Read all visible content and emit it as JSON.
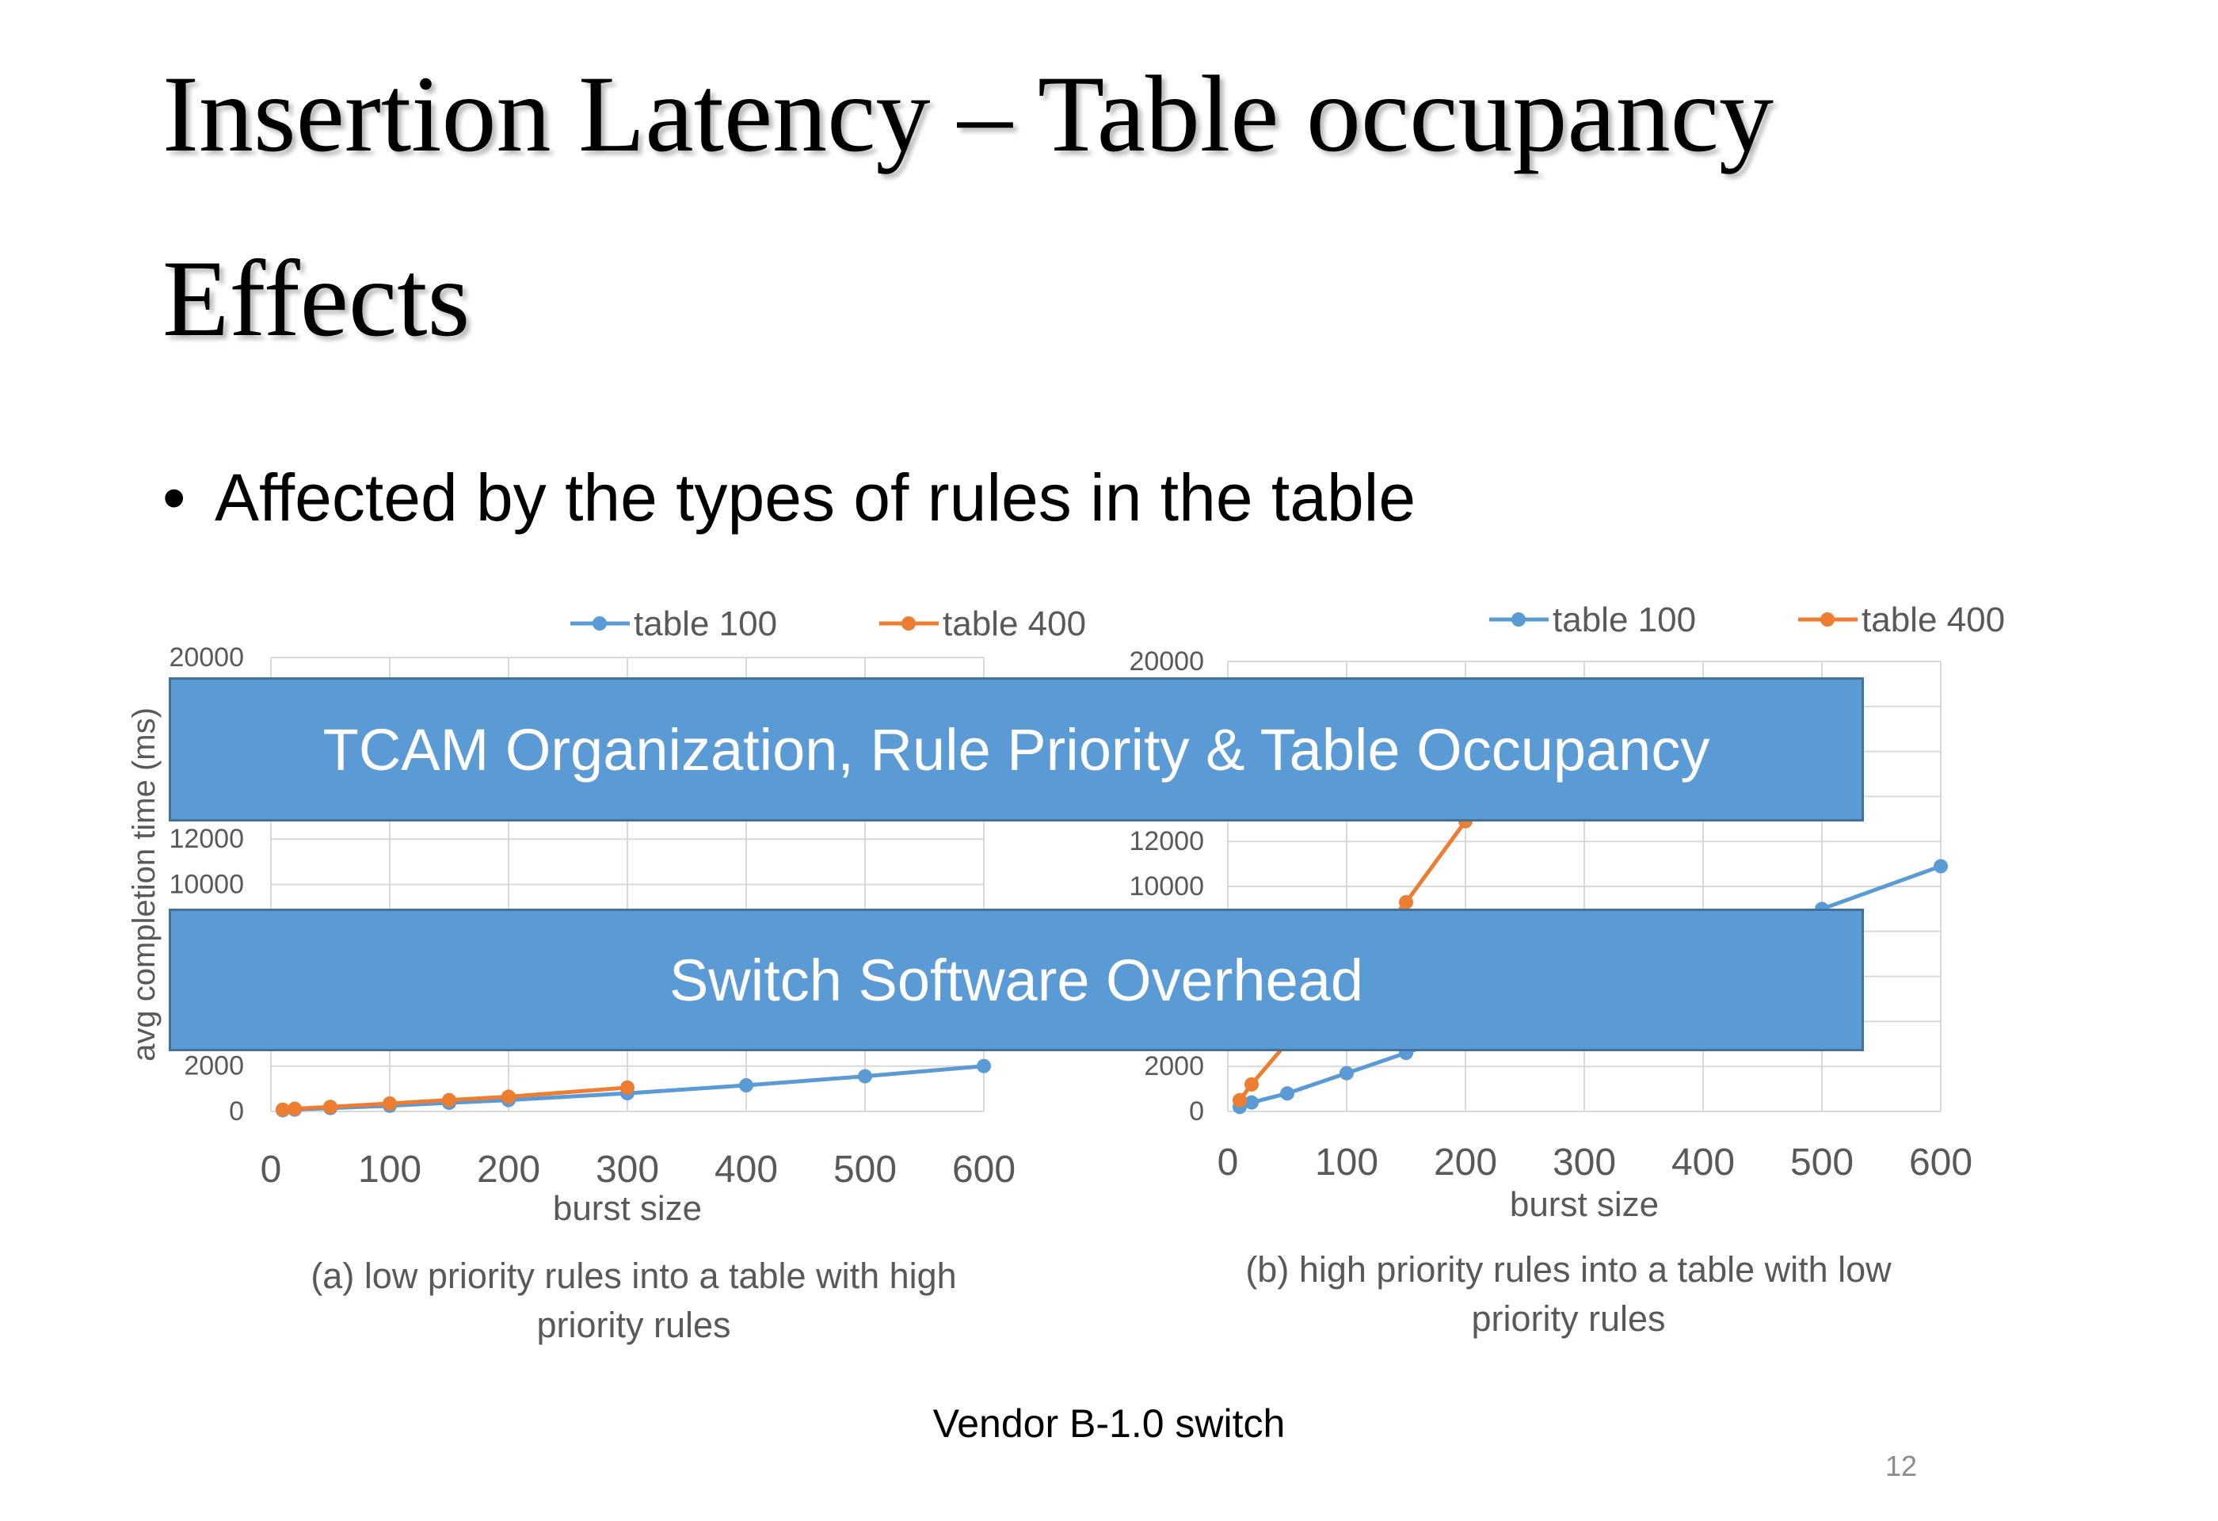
{
  "slide": {
    "title_line1": "Insertion Latency – Table occupancy",
    "title_line2": "Effects",
    "bullet_symbol": "•",
    "bullet": "Affected by the types of rules in the table",
    "banner_top": "TCAM Organization, Rule Priority & Table Occupancy",
    "banner_bottom": "Switch Software Overhead",
    "footer": "Vendor B-1.0 switch",
    "slide_number": "12"
  },
  "colors": {
    "table100": "#5b9bd5",
    "table400": "#ed7d31",
    "banner": "#5b9bd5"
  },
  "chart_data": [
    {
      "type": "line",
      "caption_line1": "(a) low priority rules into a table with high",
      "caption_line2": "priority rules",
      "xlabel": "burst size",
      "ylabel": "avg completion time (ms)",
      "xlim": [
        0,
        600
      ],
      "ylim": [
        0,
        20000
      ],
      "x_ticks": [
        "0",
        "100",
        "200",
        "300",
        "400",
        "500",
        "600"
      ],
      "y_ticks": [
        "0",
        "2000",
        "10000",
        "12000",
        "20000"
      ],
      "grid": true,
      "legend_position": "top",
      "series": [
        {
          "name": "table 100",
          "color": "#5b9bd5",
          "x": [
            10,
            20,
            50,
            100,
            150,
            200,
            300,
            400,
            500,
            600
          ],
          "y": [
            50,
            80,
            150,
            250,
            380,
            500,
            800,
            1150,
            1550,
            2000
          ]
        },
        {
          "name": "table 400",
          "color": "#ed7d31",
          "x": [
            10,
            20,
            50,
            100,
            150,
            200,
            300
          ],
          "y": [
            80,
            120,
            200,
            350,
            500,
            650,
            1050
          ]
        }
      ]
    },
    {
      "type": "line",
      "caption_line1": "(b) high priority rules into a table with low",
      "caption_line2": "priority rules",
      "xlabel": "burst size",
      "ylabel": "",
      "xlim": [
        0,
        600
      ],
      "ylim": [
        0,
        20000
      ],
      "x_ticks": [
        "0",
        "100",
        "200",
        "300",
        "400",
        "500",
        "600"
      ],
      "y_ticks": [
        "0",
        "2000",
        "10000",
        "12000",
        "20000"
      ],
      "grid": true,
      "legend_position": "top-right",
      "series": [
        {
          "name": "table 100",
          "color": "#5b9bd5",
          "x": [
            10,
            20,
            50,
            100,
            150,
            500,
            600
          ],
          "y": [
            200,
            400,
            800,
            1700,
            2600,
            9000,
            10900
          ]
        },
        {
          "name": "table 400",
          "color": "#ed7d31",
          "x": [
            10,
            20,
            150,
            200
          ],
          "y": [
            500,
            1200,
            9300,
            12900
          ]
        }
      ]
    }
  ]
}
